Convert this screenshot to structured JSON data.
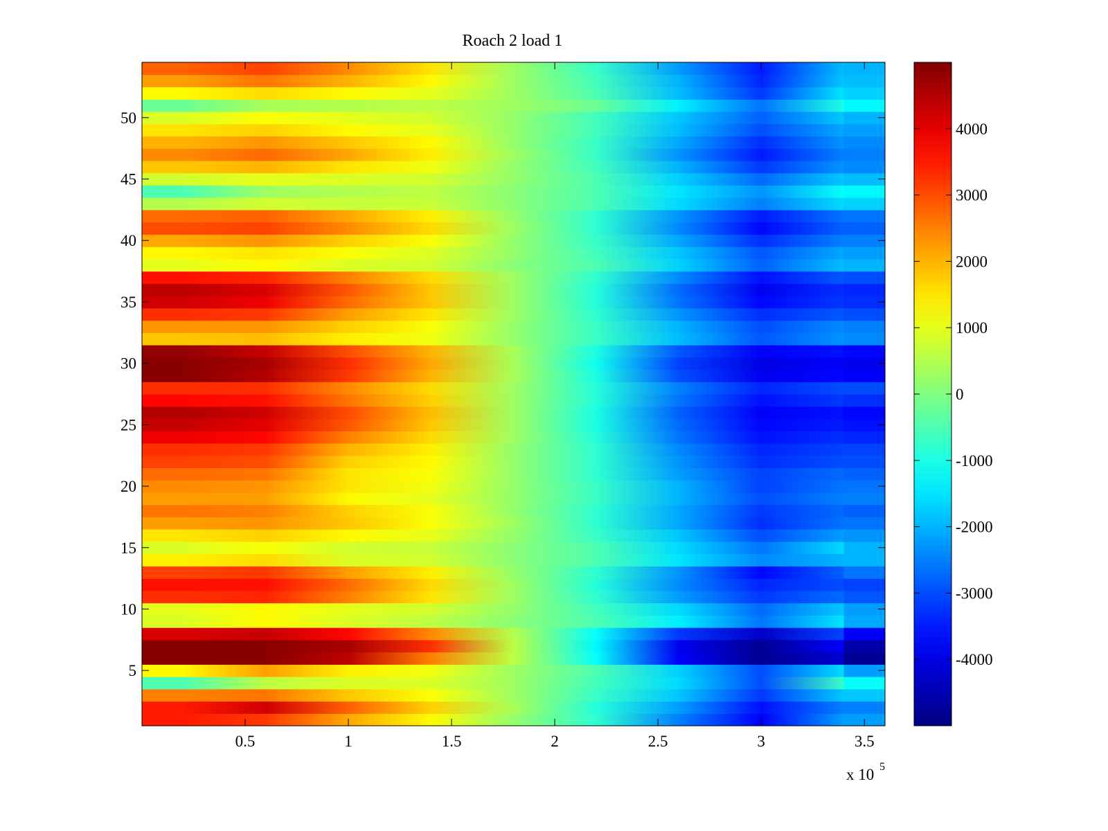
{
  "chart_data": {
    "type": "heatmap",
    "title": "Roach 2 load 1",
    "xlabel": "",
    "ylabel": "",
    "x_multiplier_base": "x 10",
    "x_multiplier_exponent": "5",
    "xlim": [
      0,
      3.6
    ],
    "ylim": [
      0.5,
      54.5
    ],
    "colorbar_lim": [
      -5000,
      5000
    ],
    "colormap": "jet",
    "grid": false,
    "x_ticks": [
      0.5,
      1,
      1.5,
      2,
      2.5,
      3,
      3.5
    ],
    "x_tick_labels": [
      "0.5",
      "1",
      "1.5",
      "2",
      "2.5",
      "3",
      "3.5"
    ],
    "y_ticks": [
      5,
      10,
      15,
      20,
      25,
      30,
      35,
      40,
      45,
      50
    ],
    "y_tick_labels": [
      "5",
      "10",
      "15",
      "20",
      "25",
      "30",
      "35",
      "40",
      "45",
      "50"
    ],
    "colorbar_ticks": [
      4000,
      3000,
      2000,
      1000,
      0,
      -1000,
      -2000,
      -3000,
      -4000
    ],
    "colorbar_tick_labels": [
      "4000",
      "3000",
      "2000",
      "1000",
      "0",
      "-1000",
      "-2000",
      "-3000",
      "-4000"
    ],
    "x_bins": [
      0.0,
      0.4,
      0.8,
      1.2,
      1.6,
      2.0,
      2.4,
      2.8,
      3.2,
      3.6
    ],
    "rows": [
      {
        "y": 1,
        "values": [
          3500,
          3200,
          2100,
          1300,
          200,
          -800,
          -2500,
          -3800,
          -2200,
          -2200
        ]
      },
      {
        "y": 2,
        "values": [
          3500,
          4200,
          2800,
          1700,
          400,
          -900,
          -2200,
          -3600,
          -2500,
          -2500
        ]
      },
      {
        "y": 3,
        "values": [
          2500,
          2600,
          1800,
          1200,
          300,
          -700,
          -1800,
          -3200,
          -1800,
          -1800
        ]
      },
      {
        "y": 4,
        "values": [
          -500,
          600,
          900,
          900,
          300,
          -600,
          -1600,
          -3000,
          -700,
          -1200
        ]
      },
      {
        "y": 5,
        "values": [
          1300,
          2200,
          1400,
          1100,
          300,
          -500,
          -1700,
          -3000,
          -1600,
          -2200
        ]
      },
      {
        "y": 6,
        "values": [
          4900,
          4900,
          4400,
          2500,
          600,
          -1200,
          -3800,
          -4800,
          -4200,
          -4800
        ]
      },
      {
        "y": 7,
        "values": [
          4900,
          4900,
          4600,
          3300,
          600,
          -1300,
          -3900,
          -4800,
          -3800,
          -4600
        ]
      },
      {
        "y": 8,
        "values": [
          4100,
          4300,
          3700,
          2400,
          500,
          -1200,
          -3200,
          -4300,
          -3100,
          -3800
        ]
      },
      {
        "y": 9,
        "values": [
          900,
          1300,
          900,
          600,
          100,
          -500,
          -1400,
          -2600,
          -1500,
          -2100
        ]
      },
      {
        "y": 10,
        "values": [
          1000,
          1300,
          1000,
          800,
          200,
          -600,
          -1600,
          -2700,
          -1800,
          -2200
        ]
      },
      {
        "y": 11,
        "values": [
          3300,
          3400,
          2500,
          1500,
          300,
          -800,
          -2200,
          -3200,
          -2700,
          -2900
        ]
      },
      {
        "y": 12,
        "values": [
          3600,
          3600,
          2700,
          1600,
          300,
          -900,
          -2400,
          -3400,
          -3000,
          -3100
        ]
      },
      {
        "y": 13,
        "values": [
          3100,
          3200,
          2200,
          1400,
          200,
          -800,
          -2300,
          -3700,
          -2800,
          -2600
        ]
      },
      {
        "y": 14,
        "values": [
          1400,
          1600,
          900,
          800,
          100,
          -500,
          -1500,
          -2400,
          -2000,
          -2000
        ]
      },
      {
        "y": 15,
        "values": [
          900,
          1200,
          800,
          700,
          100,
          -500,
          -1600,
          -2600,
          -1600,
          -2000
        ]
      },
      {
        "y": 16,
        "values": [
          1500,
          1700,
          1300,
          1000,
          200,
          -700,
          -1800,
          -3000,
          -2200,
          -2300
        ]
      },
      {
        "y": 17,
        "values": [
          2200,
          2300,
          1800,
          1200,
          300,
          -800,
          -2100,
          -3300,
          -2600,
          -2600
        ]
      },
      {
        "y": 18,
        "values": [
          2600,
          2500,
          1700,
          1200,
          200,
          -800,
          -2100,
          -3200,
          -2700,
          -2800
        ]
      },
      {
        "y": 19,
        "values": [
          2200,
          2200,
          1300,
          1000,
          200,
          -700,
          -2000,
          -3000,
          -2500,
          -2500
        ]
      },
      {
        "y": 20,
        "values": [
          2400,
          2300,
          1500,
          1100,
          200,
          -700,
          -2000,
          -3100,
          -2600,
          -2600
        ]
      },
      {
        "y": 21,
        "values": [
          2700,
          2600,
          1500,
          1200,
          200,
          -800,
          -2200,
          -3100,
          -2700,
          -2800
        ]
      },
      {
        "y": 22,
        "values": [
          3100,
          3000,
          1700,
          1300,
          200,
          -800,
          -2300,
          -3300,
          -3000,
          -3000
        ]
      },
      {
        "y": 23,
        "values": [
          3300,
          3200,
          2000,
          1400,
          200,
          -800,
          -2400,
          -3400,
          -3100,
          -3100
        ]
      },
      {
        "y": 24,
        "values": [
          3900,
          3700,
          2500,
          1600,
          300,
          -900,
          -2600,
          -3600,
          -3300,
          -3400
        ]
      },
      {
        "y": 25,
        "values": [
          4300,
          4000,
          2900,
          1800,
          300,
          -1000,
          -2700,
          -3700,
          -3500,
          -3600
        ]
      },
      {
        "y": 26,
        "values": [
          4500,
          4200,
          3000,
          1900,
          300,
          -1000,
          -2800,
          -3800,
          -3600,
          -3700
        ]
      },
      {
        "y": 27,
        "values": [
          3700,
          3600,
          2600,
          1700,
          300,
          -900,
          -2600,
          -3600,
          -3200,
          -3300
        ]
      },
      {
        "y": 28,
        "values": [
          3300,
          3300,
          2400,
          1600,
          300,
          -900,
          -2500,
          -3400,
          -3000,
          -3000
        ]
      },
      {
        "y": 29,
        "values": [
          4900,
          4500,
          3200,
          2000,
          400,
          -1000,
          -3000,
          -3900,
          -3700,
          -3800
        ]
      },
      {
        "y": 30,
        "values": [
          4900,
          4600,
          3300,
          2100,
          400,
          -1100,
          -3100,
          -4000,
          -3800,
          -3900
        ]
      },
      {
        "y": 31,
        "values": [
          4800,
          4300,
          3000,
          2000,
          400,
          -1000,
          -2900,
          -3800,
          -3600,
          -3700
        ]
      },
      {
        "y": 32,
        "values": [
          1800,
          1900,
          1400,
          1100,
          200,
          -700,
          -1900,
          -2900,
          -2300,
          -2400
        ]
      },
      {
        "y": 33,
        "values": [
          2300,
          2300,
          1700,
          1200,
          200,
          -700,
          -2000,
          -3000,
          -2400,
          -2500
        ]
      },
      {
        "y": 34,
        "values": [
          3300,
          3200,
          2200,
          1500,
          300,
          -800,
          -2300,
          -3300,
          -2900,
          -3000
        ]
      },
      {
        "y": 35,
        "values": [
          4200,
          3900,
          2700,
          1800,
          300,
          -900,
          -2600,
          -3700,
          -3200,
          -3300
        ]
      },
      {
        "y": 36,
        "values": [
          4400,
          4100,
          2900,
          1800,
          300,
          -900,
          -2700,
          -3900,
          -3300,
          -3400
        ]
      },
      {
        "y": 37,
        "values": [
          3600,
          3400,
          2500,
          1600,
          300,
          -800,
          -2400,
          -3600,
          -2900,
          -3000
        ]
      },
      {
        "y": 38,
        "values": [
          1000,
          1300,
          900,
          800,
          100,
          -500,
          -1700,
          -2800,
          -1900,
          -2000
        ]
      },
      {
        "y": 39,
        "values": [
          1300,
          1500,
          1200,
          900,
          200,
          -600,
          -1800,
          -2900,
          -2100,
          -2200
        ]
      },
      {
        "y": 40,
        "values": [
          2100,
          2300,
          1700,
          1200,
          200,
          -700,
          -2100,
          -3300,
          -2500,
          -2500
        ]
      },
      {
        "y": 41,
        "values": [
          3000,
          3100,
          2400,
          1600,
          300,
          -800,
          -2400,
          -3700,
          -2800,
          -2800
        ]
      },
      {
        "y": 42,
        "values": [
          2700,
          2800,
          2100,
          1400,
          200,
          -800,
          -2300,
          -3500,
          -2600,
          -2600
        ]
      },
      {
        "y": 43,
        "values": [
          500,
          800,
          700,
          700,
          100,
          -500,
          -1600,
          -2500,
          -1600,
          -1700
        ]
      },
      {
        "y": 44,
        "values": [
          -500,
          300,
          500,
          600,
          100,
          -500,
          -1500,
          -2300,
          -1200,
          -1300
        ]
      },
      {
        "y": 45,
        "values": [
          800,
          1000,
          900,
          800,
          200,
          -500,
          -1700,
          -2700,
          -1800,
          -1900
        ]
      },
      {
        "y": 46,
        "values": [
          1800,
          2000,
          1500,
          1100,
          200,
          -600,
          -2000,
          -3200,
          -2300,
          -2400
        ]
      },
      {
        "y": 47,
        "values": [
          2400,
          2700,
          2100,
          1400,
          300,
          -700,
          -2300,
          -3500,
          -2500,
          -2500
        ]
      },
      {
        "y": 48,
        "values": [
          2000,
          2300,
          1800,
          1300,
          200,
          -700,
          -2100,
          -3300,
          -2300,
          -2400
        ]
      },
      {
        "y": 49,
        "values": [
          1500,
          1700,
          1300,
          1000,
          200,
          -600,
          -1900,
          -3000,
          -2100,
          -2200
        ]
      },
      {
        "y": 50,
        "values": [
          900,
          1200,
          1000,
          800,
          200,
          -600,
          -1800,
          -2800,
          -1800,
          -2000
        ]
      },
      {
        "y": 51,
        "values": [
          -200,
          400,
          500,
          600,
          300,
          -200,
          -1400,
          -2600,
          -1000,
          -1300
        ]
      },
      {
        "y": 52,
        "values": [
          1300,
          1600,
          1300,
          1000,
          300,
          -500,
          -1900,
          -3200,
          -1500,
          -1700
        ]
      },
      {
        "y": 53,
        "values": [
          2200,
          2600,
          2000,
          1300,
          300,
          -600,
          -2000,
          -3400,
          -1800,
          -1900
        ]
      },
      {
        "y": 54,
        "values": [
          2800,
          3100,
          2400,
          1500,
          300,
          -700,
          -2200,
          -3500,
          -1900,
          -2000
        ]
      }
    ]
  }
}
